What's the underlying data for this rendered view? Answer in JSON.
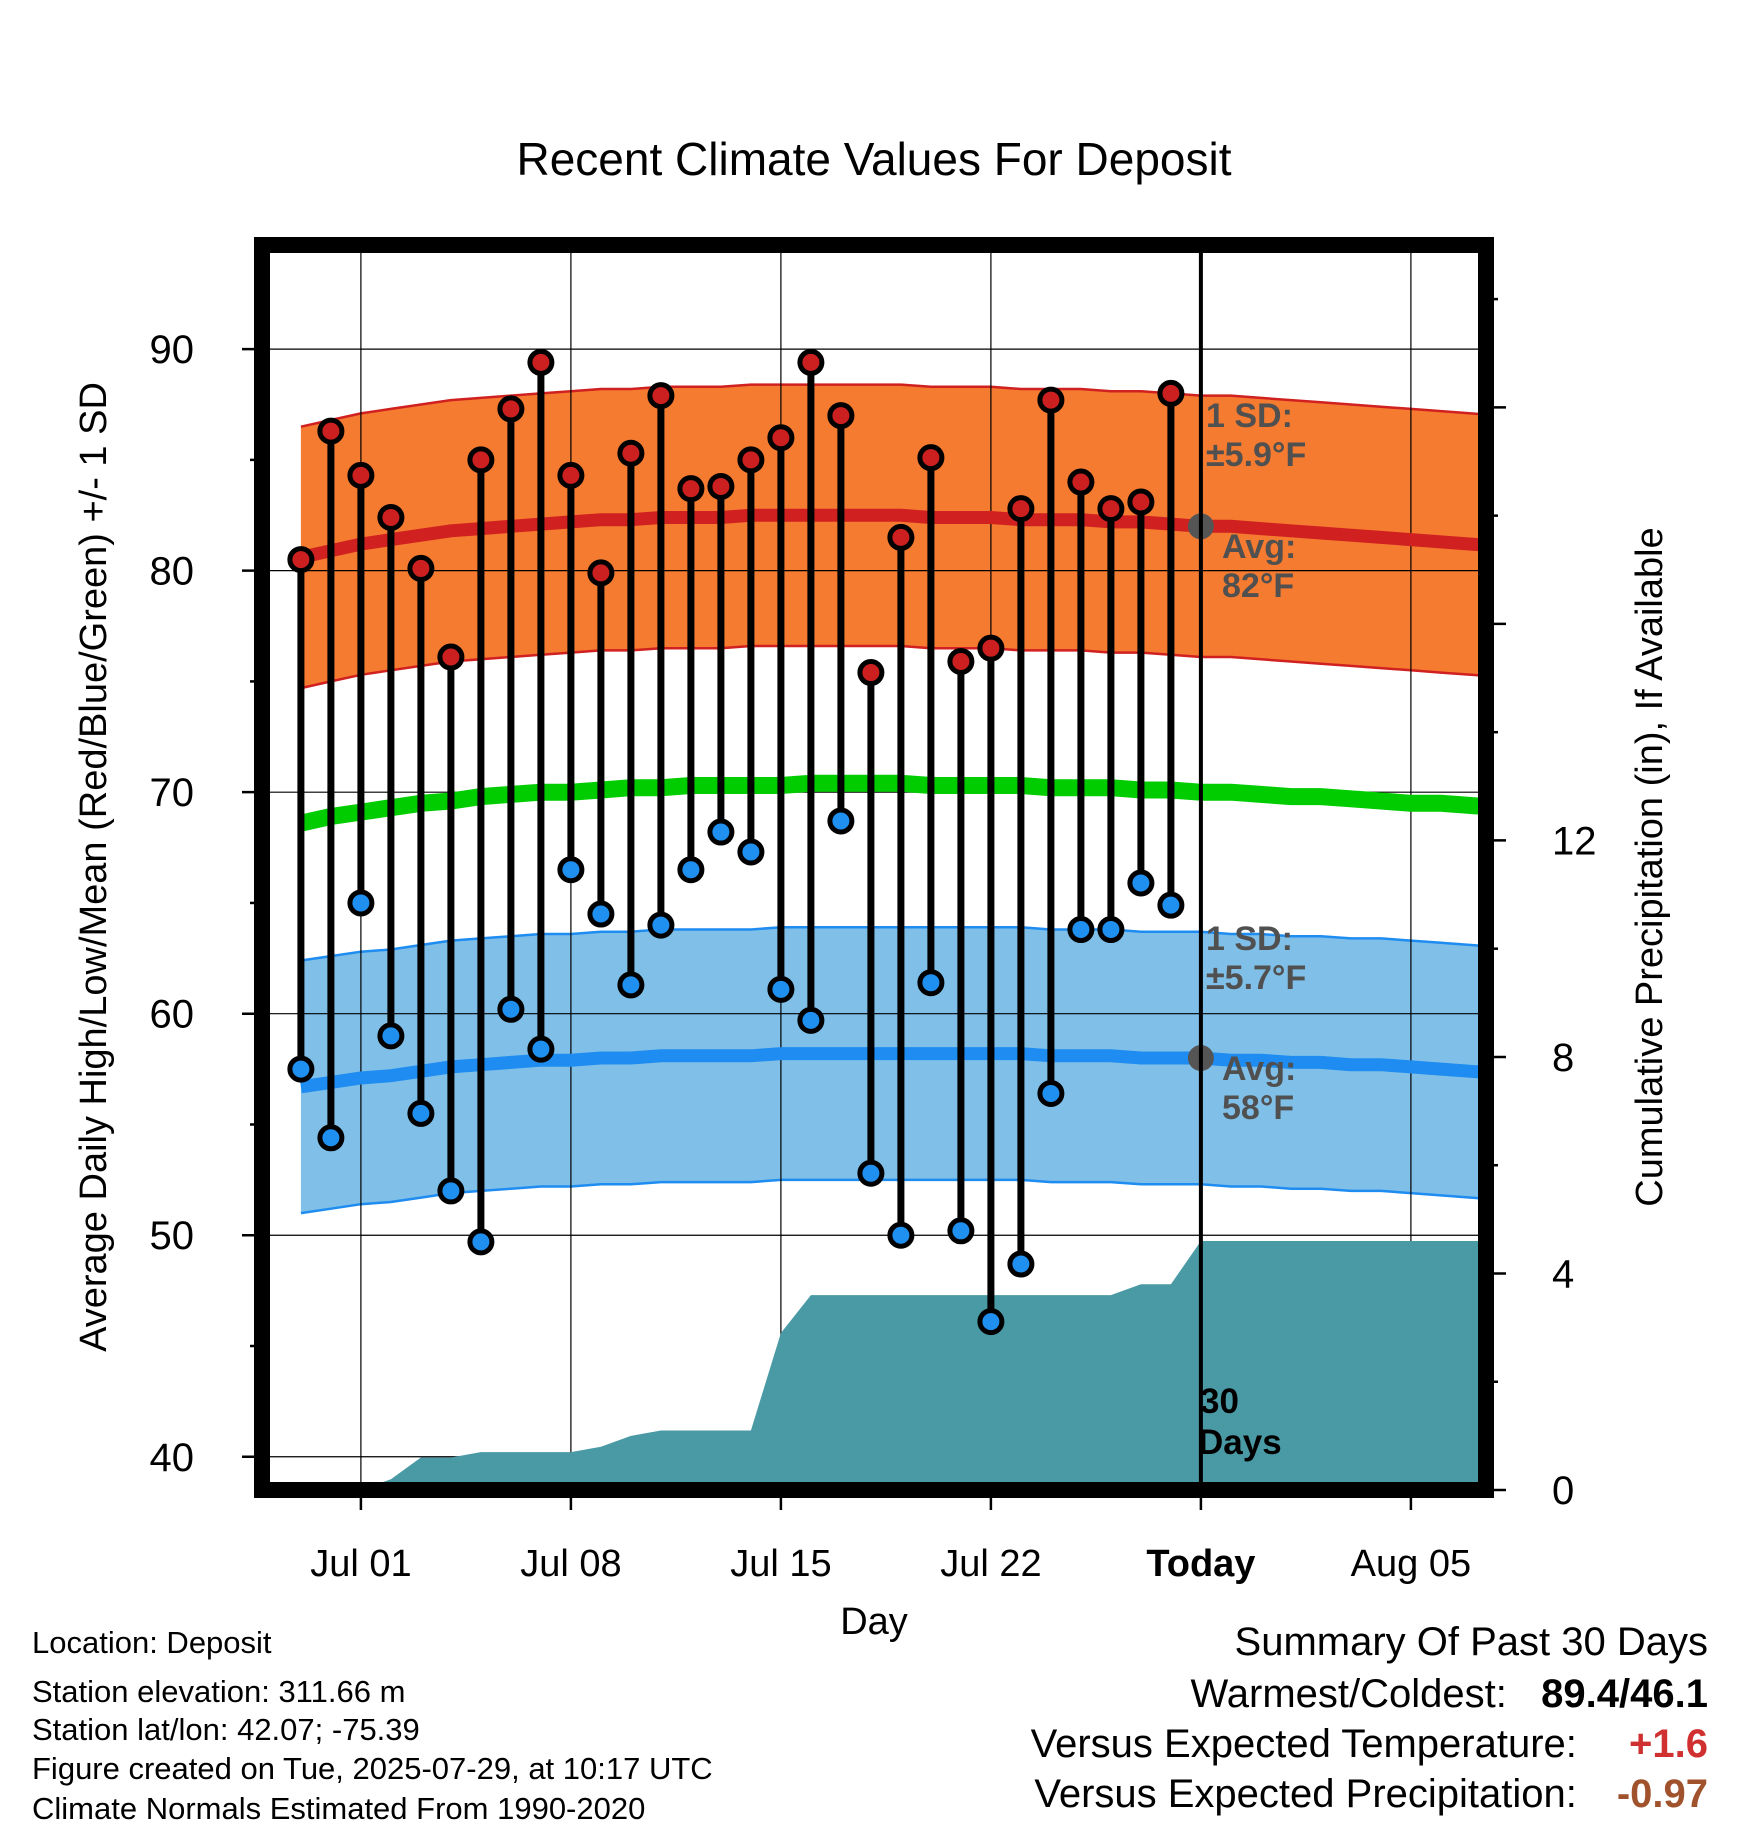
{
  "chart_data": {
    "type": "line",
    "title": "Recent Climate Values For Deposit",
    "xlabel": "Day",
    "ylabel": "Average Daily High/Low/Mean (Red/Blue/Green) +/- 1 SD",
    "y2label": "Cumulative Precipitation (in), If Available",
    "ylim": [
      38.5,
      94.7
    ],
    "y2lim": [
      0,
      23
    ],
    "yticks": [
      "40",
      "50",
      "60",
      "70",
      "80",
      "90"
    ],
    "y2ticks": [
      "0",
      "4",
      "8",
      "12"
    ],
    "xticks": [
      "Jul 01",
      "Jul 08",
      "Jul 15",
      "Jul 22",
      "Today",
      "Aug 05"
    ],
    "x_dates": [
      "Jun 28",
      "Jun 29",
      "Jun 30",
      "Jul 01",
      "Jul 02",
      "Jul 03",
      "Jul 04",
      "Jul 05",
      "Jul 06",
      "Jul 07",
      "Jul 08",
      "Jul 09",
      "Jul 10",
      "Jul 11",
      "Jul 12",
      "Jul 13",
      "Jul 14",
      "Jul 15",
      "Jul 16",
      "Jul 17",
      "Jul 18",
      "Jul 19",
      "Jul 20",
      "Jul 21",
      "Jul 22",
      "Jul 23",
      "Jul 24",
      "Jul 25",
      "Jul 26",
      "Jul 27",
      "Jul 28",
      "Jul 29",
      "Jul 30",
      "Jul 31",
      "Aug 01",
      "Aug 02",
      "Aug 03",
      "Aug 04",
      "Aug 05",
      "Aug 06",
      "Aug 07",
      "Aug 08"
    ],
    "daily_dates": [
      "Jun 29",
      "Jun 30",
      "Jul 01",
      "Jul 02",
      "Jul 03",
      "Jul 04",
      "Jul 05",
      "Jul 06",
      "Jul 07",
      "Jul 08",
      "Jul 09",
      "Jul 10",
      "Jul 11",
      "Jul 12",
      "Jul 13",
      "Jul 14",
      "Jul 15",
      "Jul 16",
      "Jul 17",
      "Jul 18",
      "Jul 19",
      "Jul 20",
      "Jul 21",
      "Jul 22",
      "Jul 23",
      "Jul 24",
      "Jul 25",
      "Jul 26",
      "Jul 27",
      "Jul 28"
    ],
    "highs": [
      80.5,
      86.3,
      84.3,
      82.4,
      80.1,
      76.1,
      85.0,
      87.3,
      89.4,
      84.3,
      79.9,
      85.3,
      87.9,
      83.7,
      83.8,
      85.0,
      86.0,
      89.4,
      87.0,
      75.4,
      81.5,
      85.1,
      75.9,
      76.5,
      82.8,
      87.7,
      84.0,
      82.8,
      83.1,
      88.0
    ],
    "lows": [
      57.5,
      54.4,
      65.0,
      59.0,
      55.5,
      52.0,
      49.7,
      60.2,
      58.4,
      66.5,
      64.5,
      61.3,
      64.0,
      66.5,
      68.2,
      67.3,
      61.1,
      59.7,
      68.7,
      52.8,
      50.0,
      61.4,
      50.2,
      46.1,
      48.7,
      56.4,
      63.8,
      63.8,
      65.9,
      64.9
    ],
    "normal_high": [
      80.6,
      80.9,
      81.2,
      81.4,
      81.6,
      81.8,
      81.9,
      82.0,
      82.1,
      82.2,
      82.3,
      82.3,
      82.4,
      82.4,
      82.4,
      82.5,
      82.5,
      82.5,
      82.5,
      82.5,
      82.5,
      82.4,
      82.4,
      82.4,
      82.3,
      82.3,
      82.3,
      82.2,
      82.2,
      82.1,
      82.0,
      82.0,
      81.9,
      81.8,
      81.7,
      81.6,
      81.5,
      81.4,
      81.3,
      81.2,
      81.1
    ],
    "normal_low": [
      56.7,
      56.9,
      57.1,
      57.2,
      57.4,
      57.6,
      57.7,
      57.8,
      57.9,
      57.9,
      58.0,
      58.0,
      58.1,
      58.1,
      58.1,
      58.1,
      58.2,
      58.2,
      58.2,
      58.2,
      58.2,
      58.2,
      58.2,
      58.2,
      58.2,
      58.1,
      58.1,
      58.1,
      58.0,
      58.0,
      58.0,
      57.9,
      57.9,
      57.8,
      57.8,
      57.7,
      57.7,
      57.6,
      57.5,
      57.4,
      57.3
    ],
    "normal_mean": [
      68.6,
      68.9,
      69.1,
      69.3,
      69.5,
      69.6,
      69.8,
      69.9,
      70.0,
      70.0,
      70.1,
      70.2,
      70.2,
      70.3,
      70.3,
      70.3,
      70.3,
      70.4,
      70.4,
      70.4,
      70.4,
      70.3,
      70.3,
      70.3,
      70.3,
      70.2,
      70.2,
      70.2,
      70.1,
      70.1,
      70.0,
      70.0,
      69.9,
      69.8,
      69.8,
      69.7,
      69.6,
      69.5,
      69.5,
      69.4,
      69.3
    ],
    "high_sd": 5.9,
    "low_sd": 5.7,
    "cumulative_precip": [
      0.0,
      0.0,
      0.0,
      0.0,
      0.2,
      0.6,
      0.6,
      0.7,
      0.7,
      0.7,
      0.7,
      0.8,
      1.0,
      1.1,
      1.1,
      1.1,
      1.1,
      2.9,
      3.6,
      3.6,
      3.6,
      3.6,
      3.6,
      3.6,
      3.6,
      3.6,
      3.6,
      3.6,
      3.6,
      3.8,
      3.8,
      4.6,
      4.6,
      4.6,
      4.6,
      4.6,
      4.6,
      4.6,
      4.6,
      4.6,
      4.6,
      4.6
    ],
    "grid": true,
    "legend": "none"
  },
  "annotations": {
    "high_sd_label": "1 SD:",
    "high_sd_value": "±5.9°F",
    "high_avg_label": "Avg:",
    "high_avg_value": "82°F",
    "low_sd_label": "1 SD:",
    "low_sd_value": "±5.7°F",
    "low_avg_label": "Avg:",
    "low_avg_value": "58°F",
    "days_label": "30",
    "days_suffix": "Days"
  },
  "footer": {
    "location": "Location: Deposit",
    "elevation": "Station elevation: 311.66 m",
    "latlon": "Station lat/lon: 42.07; -75.39",
    "created": "Figure created on Tue, 2025-07-29, at 10:17 UTC",
    "normals": "Climate Normals Estimated From 1990-2020"
  },
  "summary": {
    "title": "Summary Of Past 30 Days",
    "warm_label": "Warmest/Coldest:",
    "warm_value": "89.4/46.1",
    "temp_label": "Versus Expected Temperature:",
    "temp_value": "+1.6",
    "precip_label": "Versus Expected Precipitation:",
    "precip_value": "-0.97"
  },
  "colors": {
    "high_band": "#f47b30",
    "high_line": "#d02020",
    "low_band": "#80c0e8",
    "low_line": "#1e8cf0",
    "mean_line": "#00cc00",
    "precip": "#4a9aa5",
    "high_dot": "#cc2020",
    "low_dot": "#2090f0",
    "annotation": "#505050",
    "temp_anomaly": "#d03030",
    "precip_anomaly": "#a0522d"
  }
}
